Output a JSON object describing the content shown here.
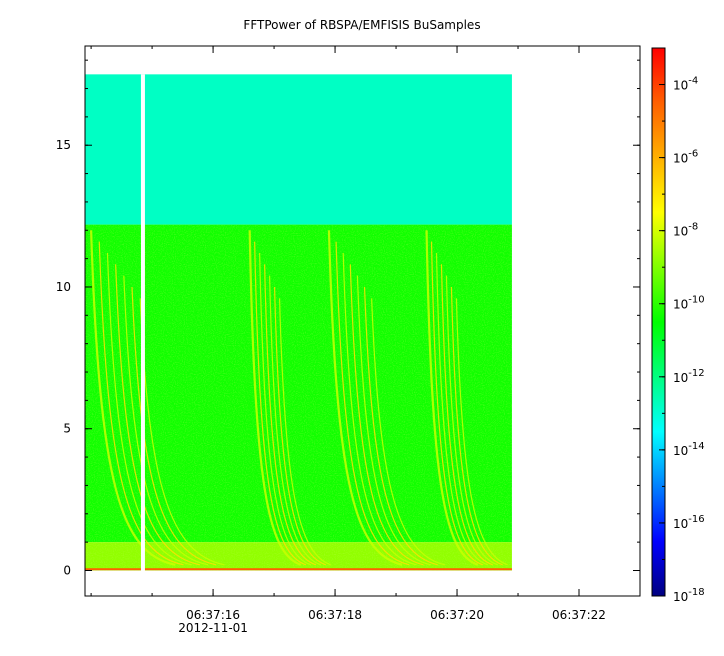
{
  "chart_data": {
    "type": "heatmap",
    "title": "FFTPower of RBSPA/EMFISIS  BuSamples",
    "xlabel": "",
    "ylabel": "",
    "x_axis": {
      "type": "time",
      "range_seconds": [
        13.9,
        23.0
      ],
      "ticks": [
        {
          "t": 16,
          "label": "06:37:16"
        },
        {
          "t": 18,
          "label": "06:37:18"
        },
        {
          "t": 20,
          "label": "06:37:20"
        },
        {
          "t": 22,
          "label": "06:37:22"
        }
      ],
      "date_label": "2012-11-01",
      "minor_step_seconds": 1
    },
    "y_axis": {
      "range": [
        -0.9,
        18.5
      ],
      "ticks": [
        0,
        5,
        10,
        15
      ],
      "minor_step": 1
    },
    "data_extent": {
      "x_start_seconds": 13.9,
      "x_end_seconds": 20.9,
      "y_min": 0,
      "y_max": 17.5
    },
    "data_gap_seconds": 14.85,
    "colorbar": {
      "scale": "log",
      "range": [
        1e-18,
        0.001
      ],
      "tick_exponents": [
        -18,
        -16,
        -14,
        -12,
        -10,
        -8,
        -6,
        -4
      ],
      "tick_base": "10",
      "colors": [
        "#000080",
        "#0000ff",
        "#0080ff",
        "#00ffff",
        "#00ff80",
        "#00ff00",
        "#80ff00",
        "#ffff00",
        "#ffb000",
        "#ff6000",
        "#ff0000"
      ]
    },
    "bands": [
      {
        "y_from": 12.2,
        "y_to": 17.5,
        "level_exponent": -12.8
      },
      {
        "y_from": 1.0,
        "y_to": 12.2,
        "level_exponent": -10.3
      },
      {
        "y_from": 0.0,
        "y_to": 1.0,
        "level_exponent": -8.8
      }
    ],
    "chorus_elements": [
      {
        "t_start": 14.0,
        "t_end": 16.3
      },
      {
        "t_start": 16.6,
        "t_end": 18.0
      },
      {
        "t_start": 17.9,
        "t_end": 19.9
      },
      {
        "t_start": 19.5,
        "t_end": 20.9
      }
    ],
    "grid": false,
    "legend": "colorbar-right"
  }
}
